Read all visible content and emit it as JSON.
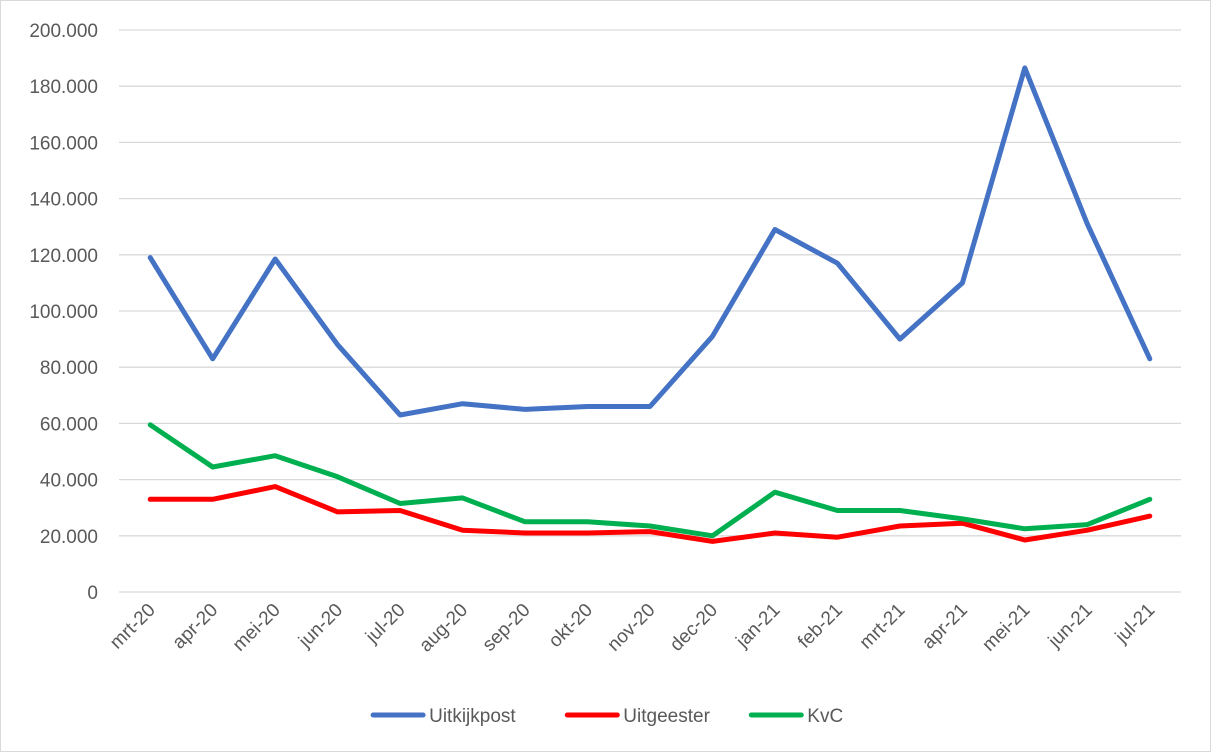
{
  "chart_data": {
    "type": "line",
    "categories": [
      "mrt-20",
      "apr-20",
      "mei-20",
      "jun-20",
      "jul-20",
      "aug-20",
      "sep-20",
      "okt-20",
      "nov-20",
      "dec-20",
      "jan-21",
      "feb-21",
      "mrt-21",
      "apr-21",
      "mei-21",
      "jun-21",
      "jul-21"
    ],
    "series": [
      {
        "name": "Uitkijkpost",
        "color": "#4472C4",
        "values": [
          119000,
          83000,
          118500,
          88000,
          63000,
          67000,
          65000,
          66000,
          66000,
          91000,
          129000,
          117000,
          90000,
          110000,
          186500,
          131000,
          83000
        ]
      },
      {
        "name": "Uitgeester",
        "color": "#FF0000",
        "values": [
          33000,
          33000,
          37500,
          28500,
          29000,
          22000,
          21000,
          21000,
          21500,
          18000,
          21000,
          19500,
          23500,
          24500,
          18500,
          22000,
          27000
        ]
      },
      {
        "name": "KvC",
        "color": "#00B050",
        "values": [
          59500,
          44500,
          48500,
          41000,
          31500,
          33500,
          25000,
          25000,
          23500,
          20000,
          35500,
          29000,
          29000,
          26000,
          22500,
          24000,
          33000
        ]
      }
    ],
    "yticks": [
      "0",
      "20.000",
      "40.000",
      "60.000",
      "80.000",
      "100.000",
      "120.000",
      "140.000",
      "160.000",
      "180.000",
      "200.000"
    ],
    "ylim": [
      0,
      200000
    ],
    "grid": true,
    "legend_position": "bottom"
  }
}
